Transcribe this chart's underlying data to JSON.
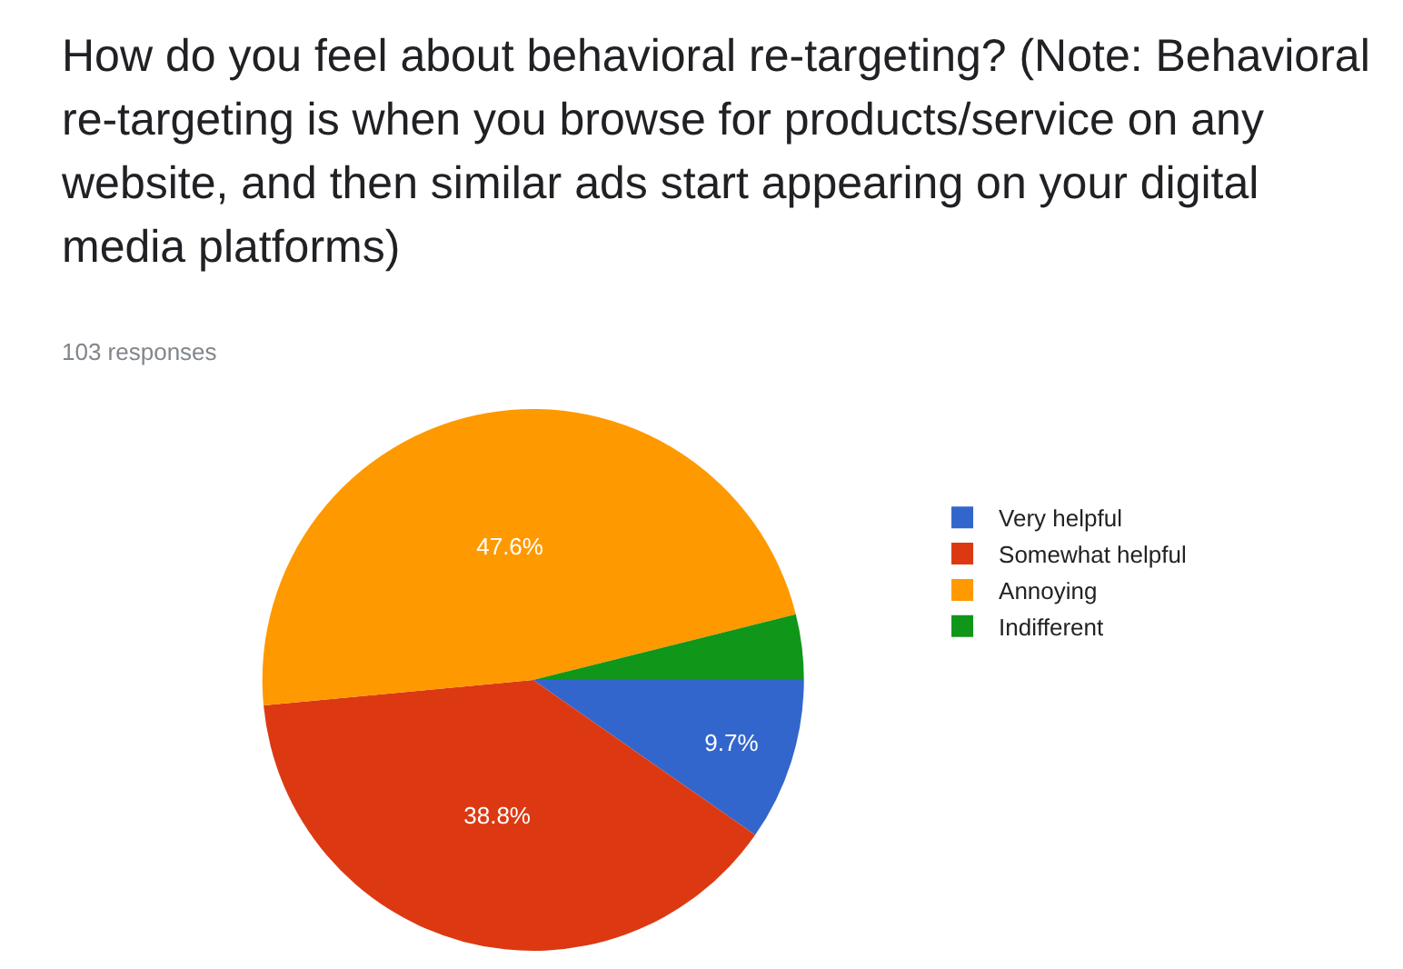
{
  "chart_data": {
    "type": "pie",
    "title": "How do you feel about behavioral re-targeting? (Note: Behavioral re-targeting is when you browse for products/service on any website, and then similar ads start appearing on your digital media platforms)",
    "subtitle": "103 responses",
    "categories": [
      "Very helpful",
      "Somewhat helpful",
      "Annoying",
      "Indifferent"
    ],
    "values": [
      9.7,
      38.8,
      47.6,
      3.9
    ],
    "value_labels": [
      "9.7%",
      "38.8%",
      "47.6%",
      null
    ],
    "colors": [
      "#3366cc",
      "#dc3912",
      "#ff9900",
      "#109618"
    ],
    "legend": "right"
  }
}
